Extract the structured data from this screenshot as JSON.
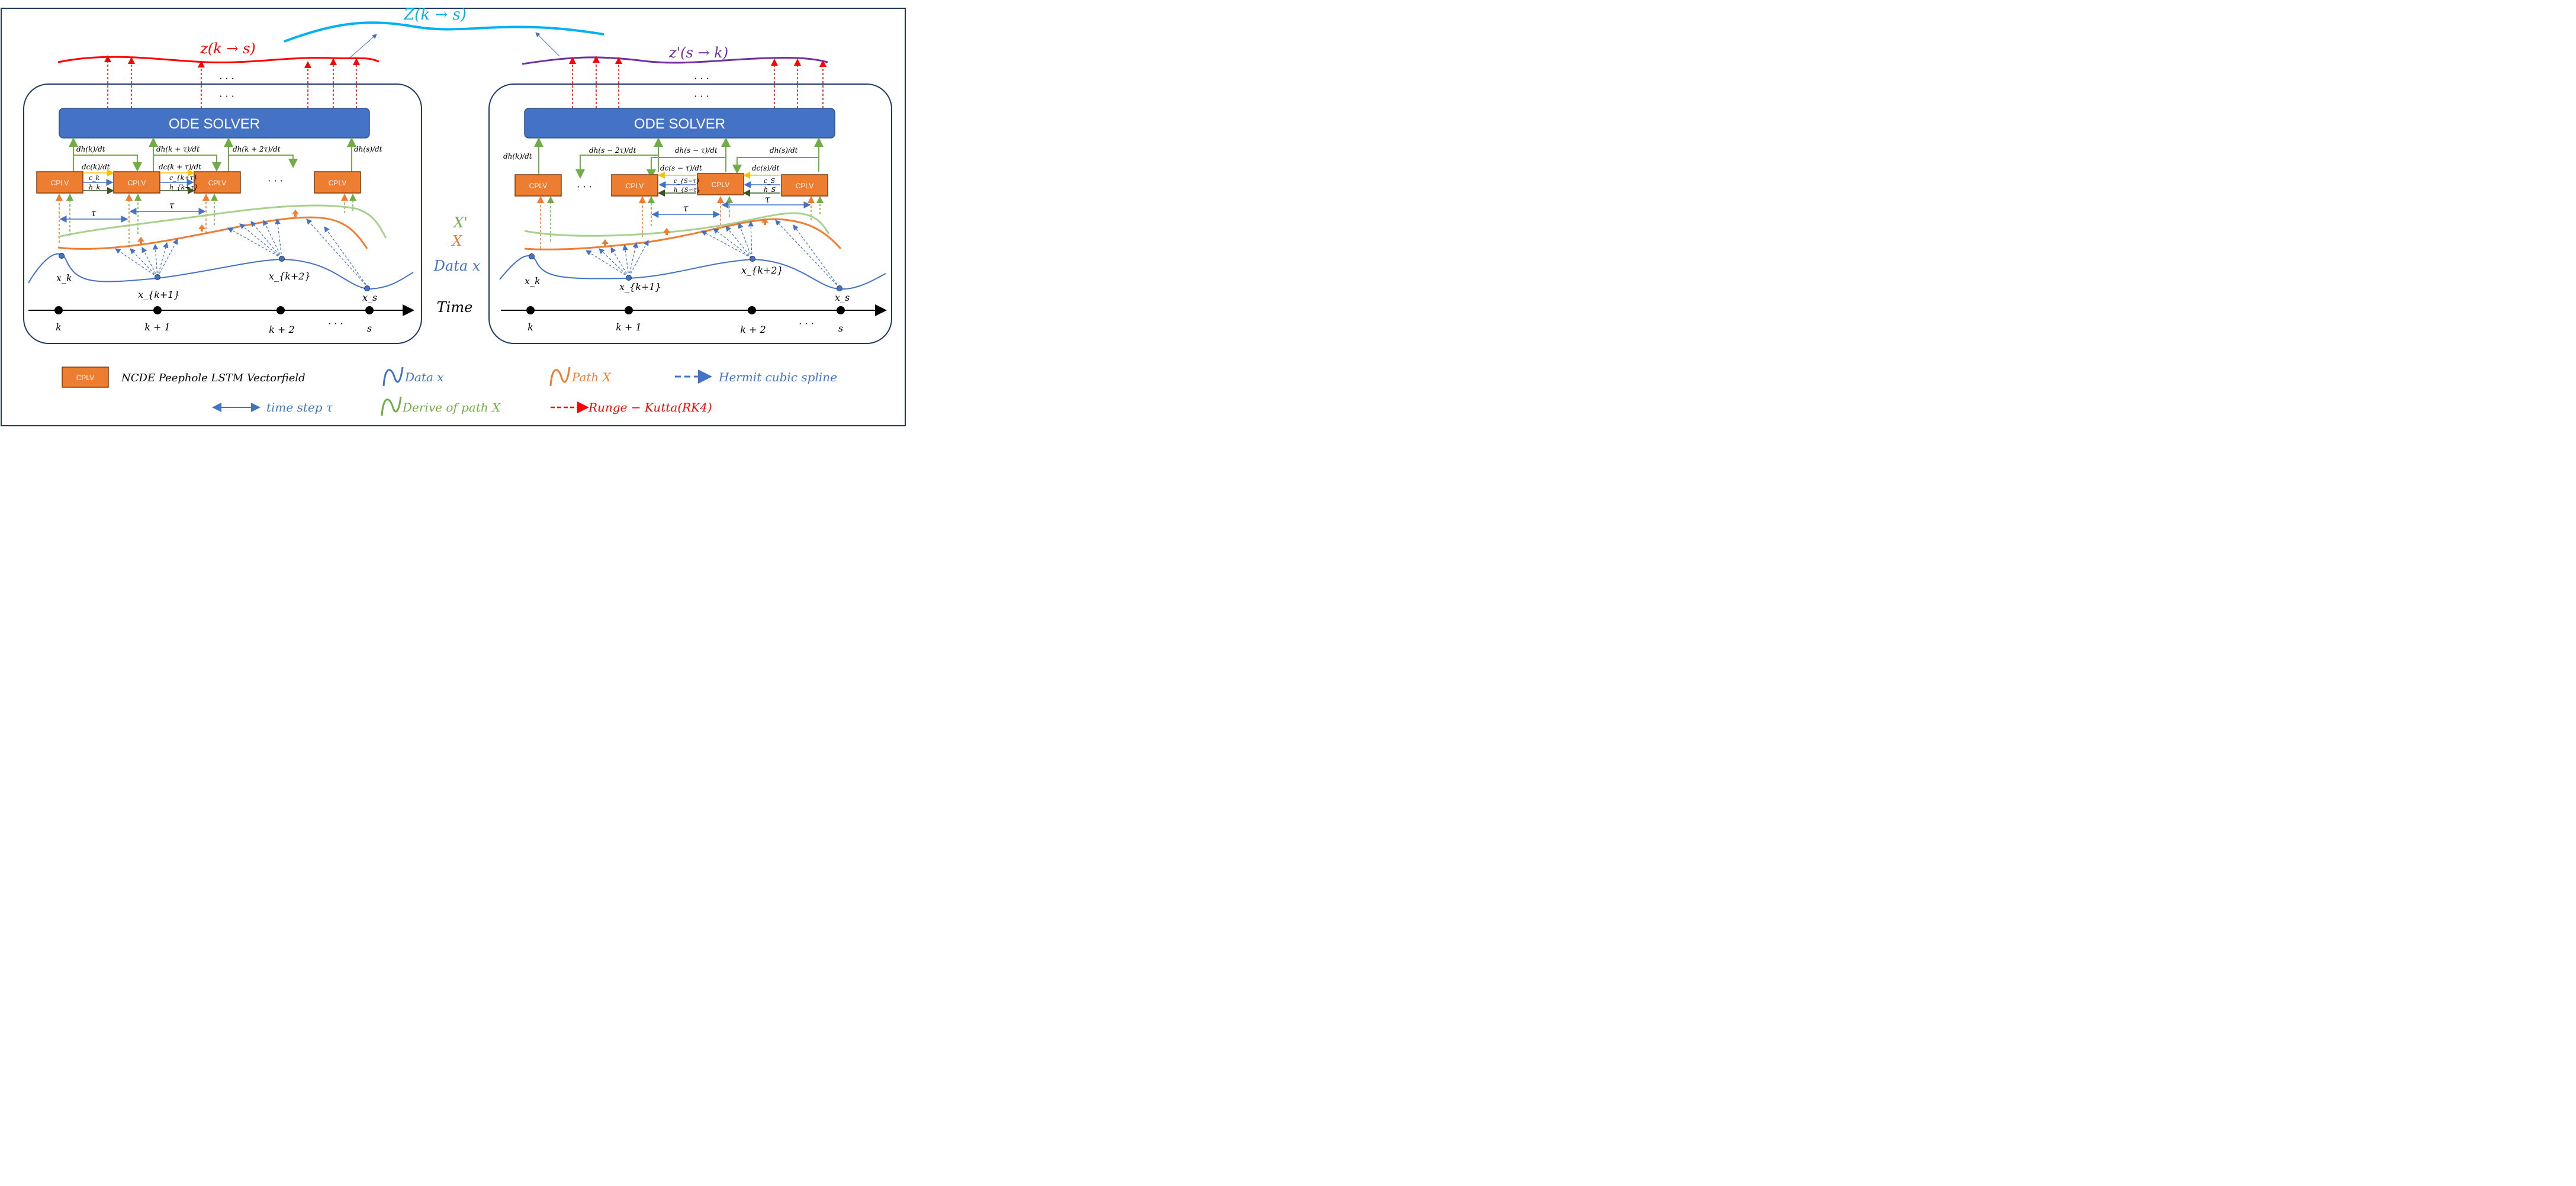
{
  "colors": {
    "border": "#1f3a57",
    "box_border": "#1f3864",
    "ode_fill": "#4472c4",
    "cplv_fill": "#ed7d31",
    "data_blue": "#4472c4",
    "path_orange": "#ed7d31",
    "deriv_green": "#a9d18e",
    "arrow_green": "#70ad47",
    "rk_red": "#ff0000",
    "z_cyan": "#00b0f0",
    "purple": "#7030a0",
    "yellow": "#ffc000"
  },
  "top": {
    "Z_label": "Z(k → s)",
    "z_left_label": "z(k → s)",
    "z_right_label": "z'(s → k)",
    "dots": "· · ·"
  },
  "left_panel": {
    "ode_label": "ODE SOLVER",
    "cplv_label": "CPLV",
    "dh": [
      "dh(k)/dt",
      "dh(k + τ)/dt",
      "dh(k + 2τ)/dt",
      "dh(s)/dt"
    ],
    "dc": [
      "dc(k)/dt",
      "dc(k + τ)/dt"
    ],
    "c": [
      "c_k",
      "c_{k+τ}"
    ],
    "h": [
      "h_k",
      "h_{k+τ}"
    ],
    "tau": "τ",
    "dots": "· · ·",
    "x_labels": [
      "x_k",
      "x_{k+1}",
      "x_{k+2}",
      "x_s"
    ],
    "time_labels": [
      "k",
      "k + 1",
      "k + 2",
      "· · ·",
      "s"
    ]
  },
  "right_panel": {
    "ode_label": "ODE SOLVER",
    "cplv_label": "CPLV",
    "dh": [
      "dh(k)/dt",
      "dh(s − 2τ)/dt",
      "dh(s − τ)/dt",
      "dh(s)/dt"
    ],
    "dc": [
      "dc(s − τ)/dt",
      "dc(s)/dt"
    ],
    "c": [
      "c_{S−τ}",
      "c_S"
    ],
    "h": [
      "h_{S−τ}",
      "h_S"
    ],
    "tau": "τ",
    "dots": "· · ·",
    "x_labels": [
      "x_k",
      "x_{k+1}",
      "x_{k+2}",
      "x_s"
    ],
    "time_labels": [
      "k",
      "k + 1",
      "k + 2",
      "· · ·",
      "s"
    ]
  },
  "middle": {
    "xprime": "X'",
    "x": "X",
    "data": "Data x",
    "time": "Time"
  },
  "legend": {
    "cplv_box": "CPLV",
    "cplv_text": "NCDE Peephole LSTM Vectorfield",
    "data_text": "Data x",
    "path_text": "Path X",
    "spline_text": "Hermit cubic spline",
    "timestep_text": "time step τ",
    "derive_text": "Derive of path X",
    "rk_text": "Runge − Kutta(RK4)"
  }
}
